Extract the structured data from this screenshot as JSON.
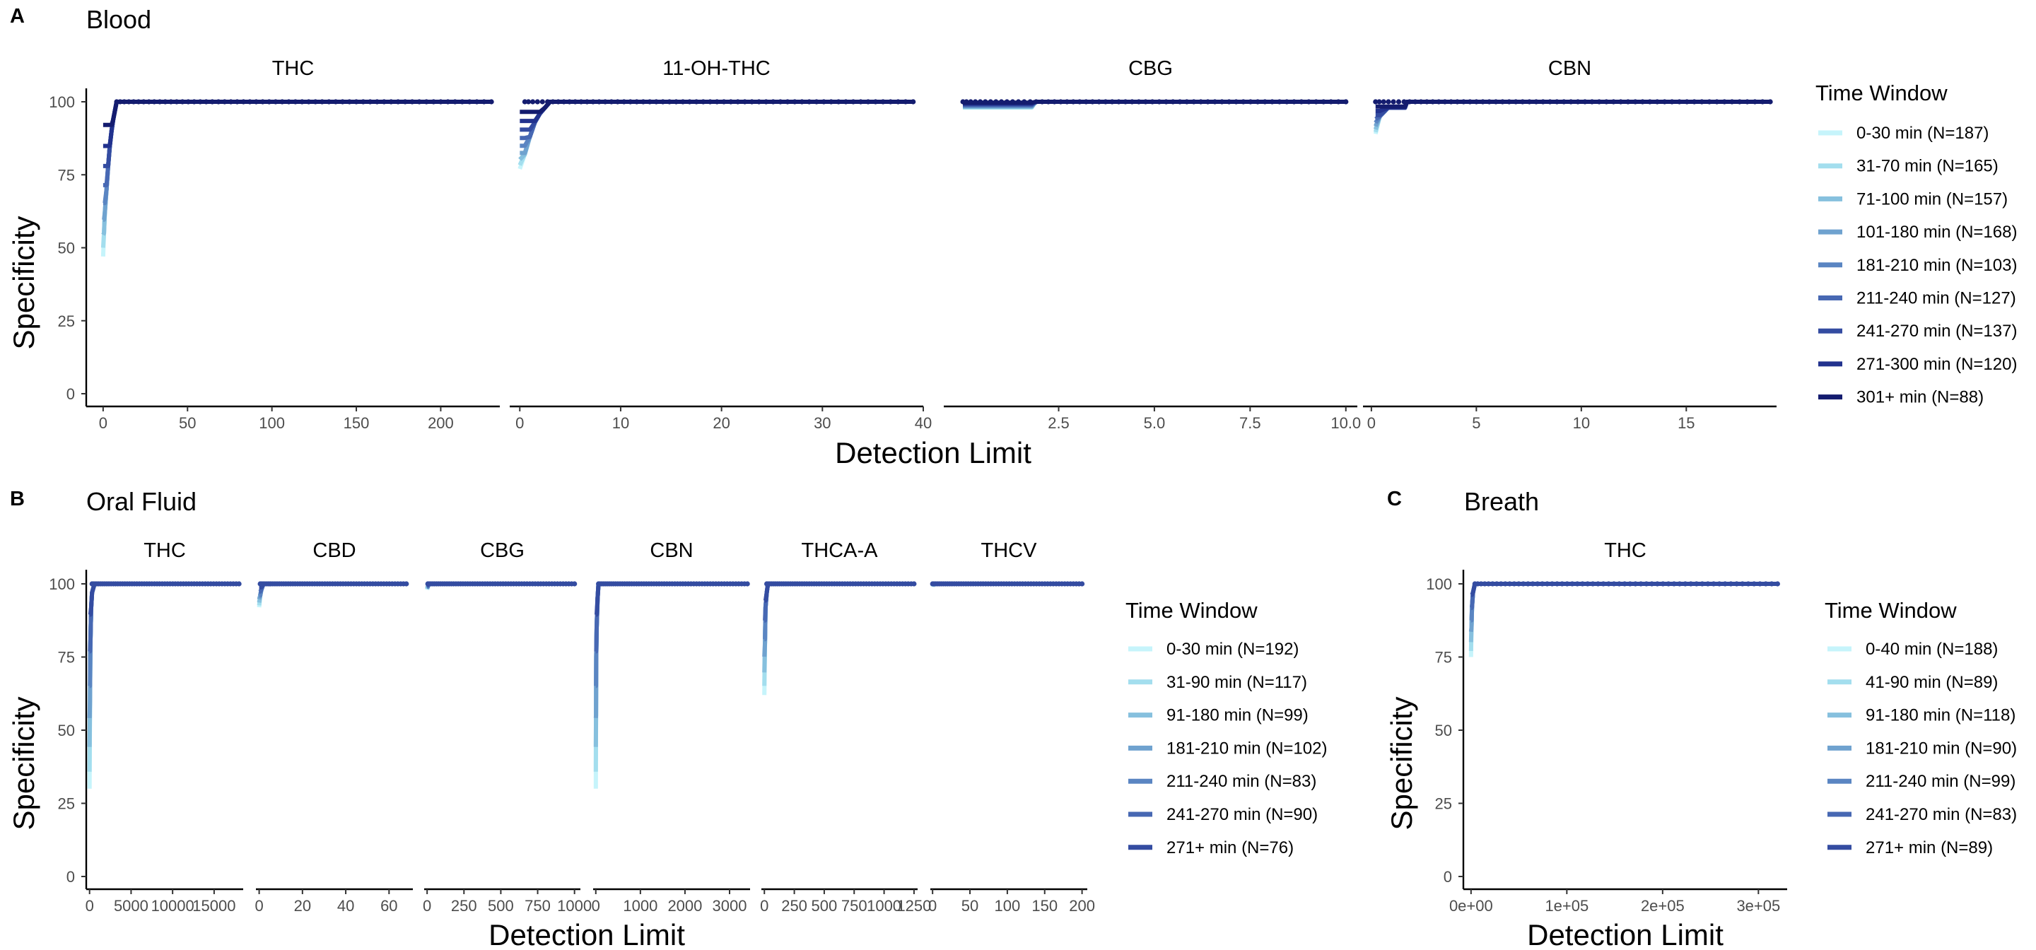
{
  "chart_data": [
    {
      "type": "line",
      "panel_label": "A",
      "title": "Blood",
      "xlabel": "Detection Limit",
      "ylabel": "Specificity",
      "ylim": [
        0,
        100
      ],
      "yticks": [
        "0",
        "25",
        "50",
        "75",
        "100"
      ],
      "legend": {
        "title": "Time Window",
        "position": "right",
        "entries": [
          {
            "label": "0-30 min (N=187)",
            "color": "#c6f4fb"
          },
          {
            "label": "31-70 min (N=165)",
            "color": "#a3deee"
          },
          {
            "label": "71-100 min (N=157)",
            "color": "#86c0de"
          },
          {
            "label": "101-180 min (N=168)",
            "color": "#6fa2cf"
          },
          {
            "label": "181-210 min (N=103)",
            "color": "#5a85c2"
          },
          {
            "label": "211-240 min (N=127)",
            "color": "#4768b3"
          },
          {
            "label": "241-270 min (N=137)",
            "color": "#344ca1"
          },
          {
            "label": "271-300 min (N=120)",
            "color": "#22328e"
          },
          {
            "label": "301+ min (N=88)",
            "color": "#141c6f"
          }
        ]
      },
      "facets": [
        {
          "name": "THC",
          "xlim": [
            -10,
            235
          ],
          "xticks": [
            0,
            50,
            100,
            150,
            200
          ],
          "xticklabels": [
            "0",
            "50",
            "100",
            "150",
            "200"
          ],
          "curve": {
            "x": [
              0,
              0.5,
              1,
              2,
              3,
              4,
              5,
              6,
              7,
              8,
              10,
              230
            ],
            "y": [
              47,
              55,
              62,
              70,
              78,
              85,
              90,
              94,
              97,
              100,
              100,
              100
            ],
            "min_spec": 47
          },
          "point_range": [
            8,
            230
          ]
        },
        {
          "name": "11-OH-THC",
          "xlim": [
            -1,
            40
          ],
          "xticks": [
            0,
            10,
            20,
            30,
            40
          ],
          "xticklabels": [
            "0",
            "10",
            "20",
            "30",
            "40"
          ],
          "curve": {
            "x": [
              0,
              0.5,
              1,
              1.5,
              2,
              2.5,
              3,
              39
            ],
            "y": [
              77,
              82,
              88,
              93,
              96,
              98,
              100,
              100
            ],
            "min_spec": 77
          },
          "point_range": [
            0.5,
            39
          ]
        },
        {
          "name": "CBG",
          "xlim": [
            -0.5,
            10.3
          ],
          "xticks": [
            2.5,
            5.0,
            7.5,
            10.0
          ],
          "xticklabels": [
            "2.5",
            "5.0",
            "7.5",
            "10.0"
          ],
          "curve": {
            "x": [
              0,
              1.8,
              1.9,
              10
            ],
            "y": [
              98,
              98,
              100,
              100
            ],
            "min_spec": 98
          },
          "point_range": [
            0,
            10
          ]
        },
        {
          "name": "CBN",
          "xlim": [
            -0.4,
            19.3
          ],
          "xticks": [
            0,
            5,
            10,
            15
          ],
          "xticklabels": [
            "0",
            "5",
            "10",
            "15"
          ],
          "curve": {
            "x": [
              0.2,
              0.4,
              0.8,
              1.6,
              1.7,
              19
            ],
            "y": [
              89,
              95,
              98,
              98,
              100,
              100
            ],
            "min_spec": 89
          },
          "point_range": [
            0.2,
            19
          ]
        }
      ]
    },
    {
      "type": "line",
      "panel_label": "B",
      "title": "Oral Fluid",
      "xlabel": "Detection Limit",
      "ylabel": "Specificity",
      "ylim": [
        0,
        100
      ],
      "yticks": [
        "0",
        "25",
        "50",
        "75",
        "100"
      ],
      "legend": {
        "title": "Time Window",
        "position": "right",
        "entries": [
          {
            "label": "0-30 min (N=192)",
            "color": "#c6f4fb"
          },
          {
            "label": "31-90 min (N=117)",
            "color": "#a3deee"
          },
          {
            "label": "91-180 min (N=99)",
            "color": "#86c0de"
          },
          {
            "label": "181-210 min (N=102)",
            "color": "#6fa2cf"
          },
          {
            "label": "211-240 min (N=83)",
            "color": "#5a85c2"
          },
          {
            "label": "241-270 min (N=90)",
            "color": "#4768b3"
          },
          {
            "label": "271+ min (N=76)",
            "color": "#344ca1"
          }
        ]
      },
      "facets": [
        {
          "name": "THC",
          "xlim": [
            -400,
            18500
          ],
          "xticks": [
            0,
            5000,
            10000,
            15000
          ],
          "xticklabels": [
            "0",
            "5000",
            "10000",
            "15000"
          ],
          "curve": {
            "x": [
              0,
              50,
              100,
              200,
              300,
              600,
              18000
            ],
            "y": [
              30,
              60,
              80,
              92,
              97,
              100,
              100
            ],
            "min_spec": 30
          },
          "point_range": [
            300,
            18000
          ]
        },
        {
          "name": "CBD",
          "xlim": [
            -1.5,
            71
          ],
          "xticks": [
            0,
            20,
            40,
            60
          ],
          "xticklabels": [
            "0",
            "20",
            "40",
            "60"
          ],
          "curve": {
            "x": [
              0,
              0.5,
              1,
              2,
              68
            ],
            "y": [
              92,
              96,
              98,
              100,
              100
            ],
            "min_spec": 92
          },
          "point_range": [
            0.5,
            68
          ]
        },
        {
          "name": "CBG",
          "xlim": [
            -20,
            1040
          ],
          "xticks": [
            0,
            250,
            500,
            750,
            1000
          ],
          "xticklabels": [
            "0",
            "250",
            "500",
            "750",
            "1000"
          ],
          "curve": {
            "x": [
              0,
              5,
              10,
              20,
              1000
            ],
            "y": [
              98,
              99,
              100,
              100,
              100
            ],
            "min_spec": 98
          },
          "point_range": [
            5,
            1000
          ]
        },
        {
          "name": "CBN",
          "xlim": [
            -60,
            3460
          ],
          "xticks": [
            0,
            1000,
            2000,
            3000
          ],
          "xticklabels": [
            "0",
            "1000",
            "2000",
            "3000"
          ],
          "curve": {
            "x": [
              0,
              5,
              10,
              20,
              40,
              60,
              3400
            ],
            "y": [
              30,
              55,
              75,
              85,
              95,
              100,
              100
            ],
            "min_spec": 30
          },
          "point_range": [
            60,
            3400
          ]
        },
        {
          "name": "THCA-A",
          "xlim": [
            -25,
            1280
          ],
          "xticks": [
            0,
            250,
            500,
            750,
            1000,
            1250
          ],
          "xticklabels": [
            "0",
            "250",
            "500",
            "750",
            "1000",
            "1250"
          ],
          "curve": {
            "x": [
              0,
              5,
              10,
              20,
              30,
              1250
            ],
            "y": [
              62,
              80,
              92,
              97,
              100,
              100
            ],
            "min_spec": 62
          },
          "point_range": [
            20,
            1250
          ]
        },
        {
          "name": "THCV",
          "xlim": [
            -3,
            207
          ],
          "xticks": [
            0,
            50,
            100,
            150,
            200
          ],
          "xticklabels": [
            "0",
            "50",
            "100",
            "150",
            "200"
          ],
          "curve": {
            "x": [
              0,
              1,
              2,
              200
            ],
            "y": [
              99,
              100,
              100,
              100
            ],
            "min_spec": 99
          },
          "point_range": [
            0,
            200
          ]
        }
      ]
    },
    {
      "type": "line",
      "panel_label": "C",
      "title": "Breath",
      "xlabel": "Detection Limit",
      "ylabel": "Specificity",
      "ylim": [
        0,
        100
      ],
      "yticks": [
        "0",
        "25",
        "50",
        "75",
        "100"
      ],
      "legend": {
        "title": "Time Window",
        "position": "right",
        "entries": [
          {
            "label": "0-40 min (N=188)",
            "color": "#c6f4fb"
          },
          {
            "label": "41-90 min (N=89)",
            "color": "#a3deee"
          },
          {
            "label": "91-180 min (N=118)",
            "color": "#86c0de"
          },
          {
            "label": "181-210 min (N=90)",
            "color": "#6fa2cf"
          },
          {
            "label": "211-240 min (N=99)",
            "color": "#5a85c2"
          },
          {
            "label": "241-270 min (N=83)",
            "color": "#4768b3"
          },
          {
            "label": "271+ min (N=89)",
            "color": "#344ca1"
          }
        ]
      },
      "facets": [
        {
          "name": "THC",
          "xlim": [
            -8000,
            330000
          ],
          "xticks": [
            0,
            100000,
            200000,
            300000
          ],
          "xticklabels": [
            "0e+00",
            "1e+05",
            "2e+05",
            "3e+05"
          ],
          "curve": {
            "x": [
              0,
              500,
              1000,
              2000,
              4000,
              320000
            ],
            "y": [
              75,
              85,
              92,
              97,
              100,
              100
            ],
            "min_spec": 75
          },
          "point_range": [
            4000,
            320000
          ]
        }
      ]
    }
  ]
}
